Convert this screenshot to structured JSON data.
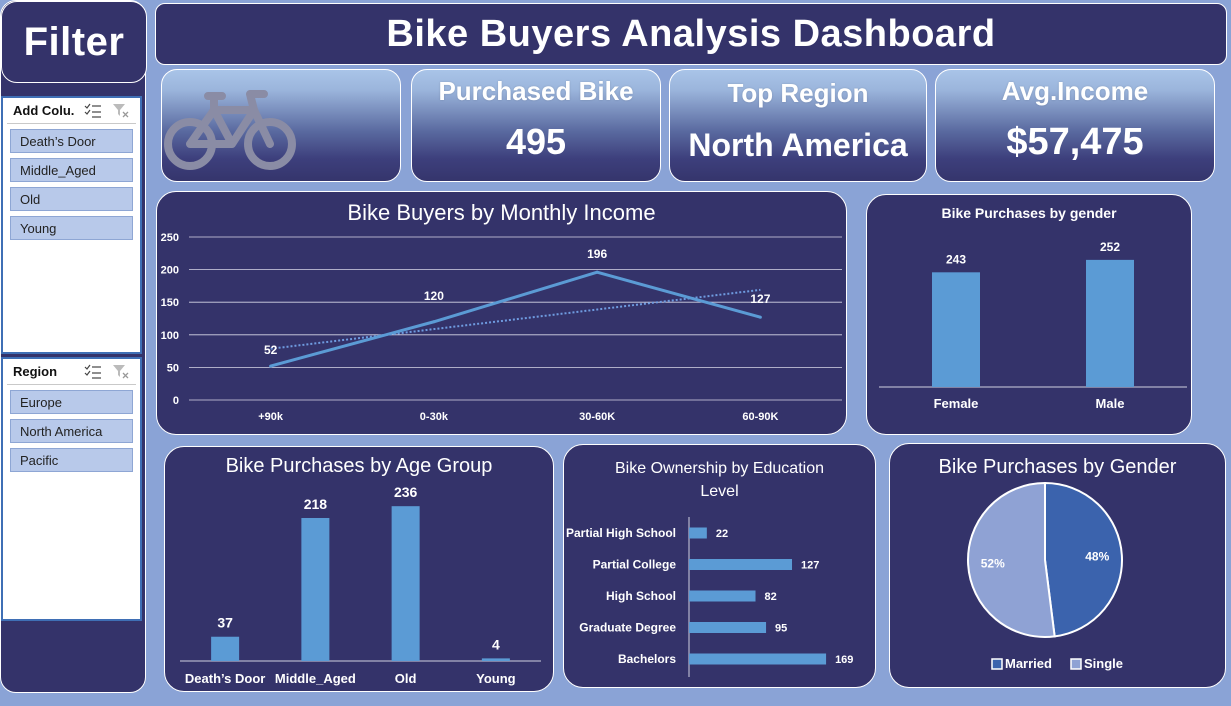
{
  "sidebar": {
    "title": "Filter",
    "age_slicer": {
      "header": "Add Colu...",
      "items": [
        "Death’s Door",
        "Middle_Aged",
        "Old",
        "Young"
      ]
    },
    "region_slicer": {
      "header": "Region",
      "items": [
        "Europe",
        "North America",
        "Pacific"
      ]
    }
  },
  "header": {
    "title": "Bike Buyers Analysis Dashboard"
  },
  "kpis": {
    "purchased": {
      "label": "Purchased Bike",
      "value": "495"
    },
    "region": {
      "label": "Top Region",
      "value": "North America"
    },
    "income": {
      "label": "Avg.Income",
      "value": "$57,475"
    }
  },
  "colors": {
    "panel": "#34336a",
    "background": "#8aa3d6",
    "bar": "#5b9bd5",
    "pie_married": "#3b63ad",
    "pie_single": "#8fa2d4"
  },
  "icons": {
    "kpi_logo": "bicycle-icon",
    "multi_select": "multi-select-icon",
    "clear_filter": "clear-filter-icon"
  },
  "chart_data": [
    {
      "id": "income",
      "type": "line",
      "title": "Bike Buyers by Monthly Income",
      "categories": [
        "+90k",
        "0-30k",
        "30-60K",
        "60-90K"
      ],
      "values": [
        52,
        120,
        196,
        127
      ],
      "trendline": true,
      "ylim": [
        0,
        250
      ],
      "yticks": [
        0,
        50,
        100,
        150,
        200,
        250
      ],
      "grid": true
    },
    {
      "id": "gender",
      "type": "bar",
      "title": "Bike Purchases by  gender",
      "categories": [
        "Female",
        "Male"
      ],
      "values": [
        243,
        252
      ],
      "ylim": [
        160,
        270
      ]
    },
    {
      "id": "age",
      "type": "bar",
      "title": "Bike Purchases by Age Group",
      "categories": [
        "Death’s Door",
        "Middle_Aged",
        "Old",
        "Young"
      ],
      "values": [
        37,
        218,
        236,
        4
      ],
      "ylim": [
        0,
        250
      ]
    },
    {
      "id": "education",
      "type": "bar",
      "orientation": "horizontal",
      "title": "Bike Ownership by Education Level",
      "categories": [
        "Partial High School",
        "Partial College",
        "High School",
        "Graduate Degree",
        "Bachelors"
      ],
      "values": [
        22,
        127,
        82,
        95,
        169
      ],
      "xlim": [
        0,
        180
      ]
    },
    {
      "id": "marital",
      "type": "pie",
      "title": "Bike Purchases by Gender",
      "categories": [
        "Married",
        "Single"
      ],
      "values": [
        48,
        52
      ],
      "labels": [
        "48%",
        "52%"
      ],
      "legend": "bottom"
    }
  ]
}
